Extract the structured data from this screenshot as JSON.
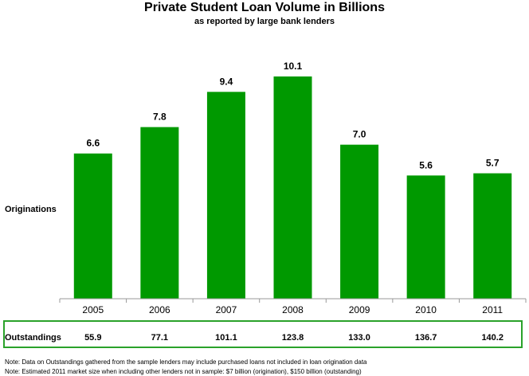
{
  "title": "Private Student Loan Volume in Billions",
  "subtitle": "as reported by large bank lenders",
  "colors": {
    "bar": "#009900",
    "outstandings_border": "#2aa22a"
  },
  "chart_data": {
    "type": "bar",
    "title": "Private Student Loan Volume in Billions",
    "subtitle": "as reported by large bank lenders",
    "categories": [
      "2005",
      "2006",
      "2007",
      "2008",
      "2009",
      "2010",
      "2011"
    ],
    "series": [
      {
        "name": "Originations",
        "values": [
          6.6,
          7.8,
          9.4,
          10.1,
          7.0,
          5.6,
          5.7
        ]
      }
    ],
    "row_label": "Originations",
    "ylim": [
      0,
      10.1
    ],
    "grid": false,
    "data_labels": [
      "6.6",
      "7.8",
      "9.4",
      "10.1",
      "7.0",
      "5.6",
      "5.7"
    ]
  },
  "outstandings": {
    "label": "Outstandings",
    "values": [
      "55.9",
      "77.1",
      "101.1",
      "123.8",
      "133.0",
      "136.7",
      "140.2"
    ]
  },
  "notes": [
    "Note:  Data on Outstandings gathered from the sample lenders may include purchased loans not included in loan origination data",
    "Note:  Estimated 2011 market size when including other lenders not in sample: $7 billion (origination), $150 billion (outstanding)"
  ]
}
